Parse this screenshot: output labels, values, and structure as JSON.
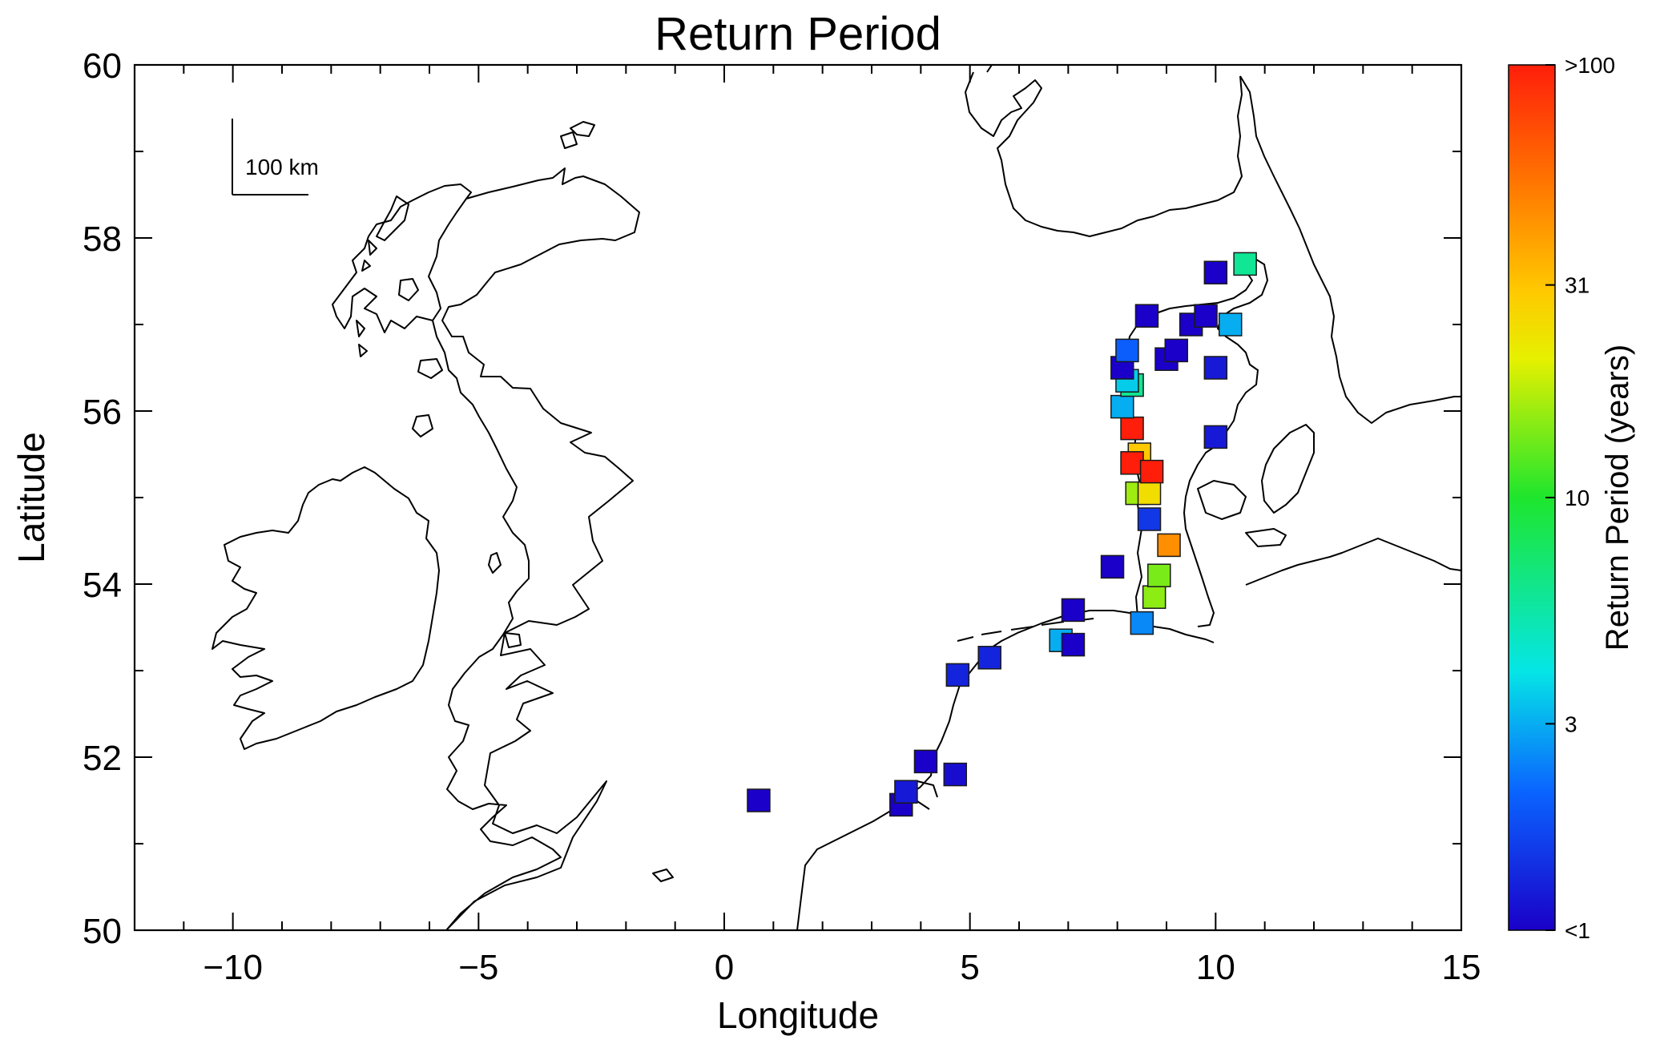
{
  "title": "Return Period",
  "xlabel": "Longitude",
  "ylabel": "Latitude",
  "scale_bar": {
    "label": "100 km"
  },
  "colorbar": {
    "title": "Return Period (years)",
    "tick_labels": [
      ">100",
      "31",
      "10",
      "3",
      "<1"
    ],
    "tick_values": [
      100,
      31,
      10,
      3,
      1
    ]
  },
  "chart_data": {
    "type": "scatter",
    "title": "Return Period",
    "xlabel": "Longitude",
    "ylabel": "Latitude",
    "xlim": [
      -12,
      15
    ],
    "ylim": [
      50,
      60
    ],
    "x_ticks": [
      -10,
      -5,
      0,
      5,
      10,
      15
    ],
    "x_tick_labels": [
      "−10",
      "−5",
      "0",
      "5",
      "10",
      "15"
    ],
    "y_ticks": [
      50,
      52,
      54,
      56,
      58,
      60
    ],
    "y_tick_labels": [
      "50",
      "52",
      "54",
      "56",
      "58",
      "60"
    ],
    "grid": false,
    "color_scale": "log return period, <1 (blue) to >100 (red) years",
    "points": [
      {
        "lon": 0.7,
        "lat": 51.5,
        "return_period": 1
      },
      {
        "lon": 3.6,
        "lat": 51.45,
        "return_period": 1
      },
      {
        "lon": 3.7,
        "lat": 51.6,
        "return_period": 1.2
      },
      {
        "lon": 4.1,
        "lat": 51.95,
        "return_period": 1
      },
      {
        "lon": 4.7,
        "lat": 51.8,
        "return_period": 1.1
      },
      {
        "lon": 4.75,
        "lat": 52.95,
        "return_period": 1.3
      },
      {
        "lon": 5.4,
        "lat": 53.15,
        "return_period": 1.3
      },
      {
        "lon": 6.85,
        "lat": 53.35,
        "return_period": 3
      },
      {
        "lon": 7.1,
        "lat": 53.3,
        "return_period": 1
      },
      {
        "lon": 7.1,
        "lat": 53.7,
        "return_period": 1
      },
      {
        "lon": 7.9,
        "lat": 54.2,
        "return_period": 1
      },
      {
        "lon": 8.5,
        "lat": 53.55,
        "return_period": 2.5
      },
      {
        "lon": 8.75,
        "lat": 53.85,
        "return_period": 15
      },
      {
        "lon": 8.85,
        "lat": 54.1,
        "return_period": 14
      },
      {
        "lon": 9.05,
        "lat": 54.45,
        "return_period": 45
      },
      {
        "lon": 8.65,
        "lat": 54.75,
        "return_period": 1.5
      },
      {
        "lon": 8.4,
        "lat": 55.05,
        "return_period": 16
      },
      {
        "lon": 8.65,
        "lat": 55.05,
        "return_period": 25
      },
      {
        "lon": 8.45,
        "lat": 55.5,
        "return_period": 30
      },
      {
        "lon": 8.3,
        "lat": 55.4,
        "return_period": 100
      },
      {
        "lon": 8.7,
        "lat": 55.3,
        "return_period": 100
      },
      {
        "lon": 8.3,
        "lat": 55.8,
        "return_period": 100
      },
      {
        "lon": 8.1,
        "lat": 56.05,
        "return_period": 3
      },
      {
        "lon": 8.3,
        "lat": 56.3,
        "return_period": 6
      },
      {
        "lon": 8.2,
        "lat": 56.35,
        "return_period": 3.5
      },
      {
        "lon": 8.1,
        "lat": 56.5,
        "return_period": 1
      },
      {
        "lon": 8.2,
        "lat": 56.7,
        "return_period": 2
      },
      {
        "lon": 8.6,
        "lat": 57.1,
        "return_period": 1
      },
      {
        "lon": 9.0,
        "lat": 56.6,
        "return_period": 1
      },
      {
        "lon": 9.2,
        "lat": 56.7,
        "return_period": 1
      },
      {
        "lon": 9.5,
        "lat": 57.0,
        "return_period": 1
      },
      {
        "lon": 9.8,
        "lat": 57.1,
        "return_period": 1
      },
      {
        "lon": 10.3,
        "lat": 57.0,
        "return_period": 3
      },
      {
        "lon": 10.0,
        "lat": 57.6,
        "return_period": 1
      },
      {
        "lon": 10.6,
        "lat": 57.7,
        "return_period": 6
      },
      {
        "lon": 10.0,
        "lat": 56.5,
        "return_period": 1.2
      },
      {
        "lon": 10.0,
        "lat": 55.7,
        "return_period": 1.2
      }
    ]
  }
}
